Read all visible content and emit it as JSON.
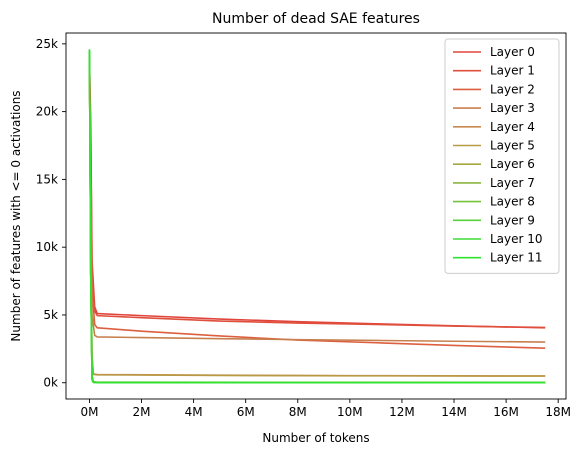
{
  "chart_data": {
    "type": "line",
    "title": "Number of dead SAE features",
    "xlabel": "Number of tokens",
    "ylabel": "Number of features with <= 0 activations",
    "xlim": [
      -0.9,
      18.3
    ],
    "ylim": [
      -1200,
      25800
    ],
    "x_unit": "M tokens",
    "x_ticks": [
      0,
      2,
      4,
      6,
      8,
      10,
      12,
      14,
      16,
      18
    ],
    "x_tick_labels": [
      "0M",
      "2M",
      "4M",
      "6M",
      "8M",
      "10M",
      "12M",
      "14M",
      "16M",
      "18M"
    ],
    "y_ticks": [
      0,
      5000,
      10000,
      15000,
      20000,
      25000
    ],
    "y_tick_labels": [
      "0k",
      "5k",
      "10k",
      "15k",
      "20k",
      "25k"
    ],
    "grid": false,
    "legend_position": "top-right",
    "series": [
      {
        "name": "Layer 0",
        "color": "#e0453c",
        "x": [
          0,
          0.05,
          0.1,
          0.2,
          0.3,
          2,
          5,
          8,
          11,
          14,
          17.5
        ],
        "y": [
          24000,
          19000,
          9000,
          5600,
          5100,
          4950,
          4700,
          4500,
          4350,
          4200,
          4050
        ]
      },
      {
        "name": "Layer 1",
        "color": "#df4f3c",
        "x": [
          0,
          0.05,
          0.1,
          0.2,
          0.3,
          2,
          5,
          8,
          11,
          14,
          17.5
        ],
        "y": [
          24000,
          18000,
          8000,
          5300,
          4950,
          4800,
          4550,
          4400,
          4300,
          4180,
          4080
        ]
      },
      {
        "name": "Layer 2",
        "color": "#dc5f3f",
        "x": [
          0,
          0.05,
          0.1,
          0.2,
          0.3,
          1,
          2,
          5,
          8,
          11,
          14,
          17.5
        ],
        "y": [
          24000,
          15000,
          7000,
          4300,
          4050,
          3950,
          3800,
          3450,
          3150,
          2950,
          2750,
          2550
        ]
      },
      {
        "name": "Layer 3",
        "color": "#c87f4e",
        "x": [
          0,
          0.05,
          0.1,
          0.2,
          0.3,
          2,
          5,
          8,
          11,
          14,
          17.5
        ],
        "y": [
          24000,
          12000,
          5000,
          3500,
          3380,
          3330,
          3250,
          3180,
          3120,
          3060,
          3000
        ]
      },
      {
        "name": "Layer 4",
        "color": "#c88a50",
        "x": [
          0,
          0.05,
          0.1,
          0.15,
          0.3,
          5,
          10,
          17.5
        ],
        "y": [
          24000,
          10000,
          2000,
          650,
          600,
          560,
          520,
          500
        ]
      },
      {
        "name": "Layer 5",
        "color": "#b89a45",
        "x": [
          0,
          0.05,
          0.1,
          0.15,
          0.3,
          5,
          10,
          17.5
        ],
        "y": [
          24000,
          10000,
          1800,
          620,
          580,
          540,
          510,
          490
        ]
      },
      {
        "name": "Layer 6",
        "color": "#a6a640",
        "x": [
          0,
          0.05,
          0.1,
          0.15,
          0.3,
          17.5
        ],
        "y": [
          24500,
          8000,
          500,
          80,
          40,
          20
        ]
      },
      {
        "name": "Layer 7",
        "color": "#8cb640",
        "x": [
          0,
          0.05,
          0.1,
          0.15,
          0.3,
          17.5
        ],
        "y": [
          24500,
          8000,
          500,
          60,
          30,
          15
        ]
      },
      {
        "name": "Layer 8",
        "color": "#74c43c",
        "x": [
          0,
          0.05,
          0.1,
          0.15,
          0.3,
          17.5
        ],
        "y": [
          24500,
          8000,
          400,
          50,
          25,
          10
        ]
      },
      {
        "name": "Layer 9",
        "color": "#58d23a",
        "x": [
          0,
          0.05,
          0.1,
          0.15,
          0.3,
          17.5
        ],
        "y": [
          24500,
          8000,
          300,
          40,
          20,
          10
        ]
      },
      {
        "name": "Layer 10",
        "color": "#3edc36",
        "x": [
          0,
          0.05,
          0.1,
          0.15,
          0.3,
          17.5
        ],
        "y": [
          24500,
          8000,
          300,
          30,
          15,
          5
        ]
      },
      {
        "name": "Layer 11",
        "color": "#2ee42e",
        "x": [
          0,
          0.05,
          0.1,
          0.15,
          0.3,
          17.5
        ],
        "y": [
          24600,
          8000,
          200,
          20,
          10,
          5
        ]
      }
    ]
  }
}
